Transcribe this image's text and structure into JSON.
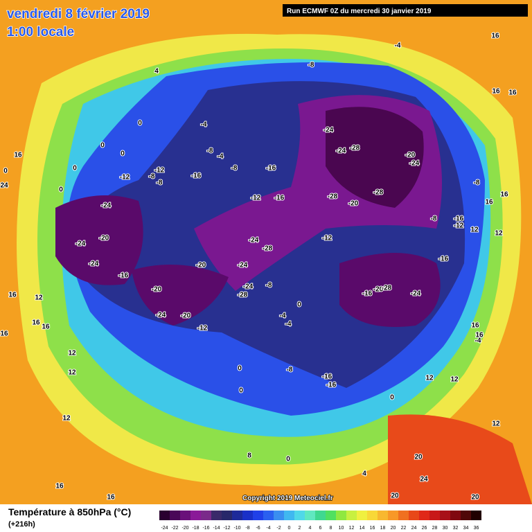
{
  "header": {
    "date": "vendredi 8 février 2019",
    "time": "1:00 locale",
    "run": "Run ECMWF 0Z du mercredi 30 janvier 2019"
  },
  "copyright": "Copyright 2019 Meteociel.fr",
  "legend": {
    "title": "Température à 850hPa (°C)",
    "subtitle": "(+216h)",
    "ticks": [
      -24,
      -22,
      -20,
      -18,
      -16,
      -14,
      -12,
      -10,
      -8,
      -6,
      -4,
      -2,
      0,
      2,
      4,
      6,
      8,
      10,
      12,
      14,
      16,
      18,
      20,
      22,
      24,
      26,
      28,
      30,
      32,
      34,
      36
    ],
    "colors": [
      "#2a0030",
      "#4a0858",
      "#6a107a",
      "#8a1a98",
      "#7a2a8a",
      "#3a2a6a",
      "#28286a",
      "#1e2a9a",
      "#1a30c8",
      "#2040e8",
      "#2a60f0",
      "#3a8ef0",
      "#40b8f0",
      "#50d8e8",
      "#60e8c0",
      "#40d890",
      "#50e060",
      "#90e840",
      "#c8f040",
      "#f0f040",
      "#f8d838",
      "#f8b830",
      "#f89828",
      "#f07020",
      "#e84818",
      "#e02818",
      "#c81818",
      "#a81018",
      "#800810",
      "#500808",
      "#200000"
    ]
  },
  "contour_labels": [
    -4,
    -8,
    4,
    16,
    16,
    16,
    0,
    -4,
    -24,
    -28,
    -24,
    -20,
    -24,
    0,
    0,
    -8,
    -4,
    -12,
    -8,
    -16,
    0,
    -12,
    -8,
    -8,
    -16,
    0,
    -8,
    16,
    16,
    -28,
    -28,
    -20,
    -12,
    -16,
    -24,
    -8,
    -16,
    -12,
    12,
    12,
    -20,
    -24,
    -24,
    -28,
    -12,
    -24,
    -20,
    -24,
    -16,
    -16,
    -8,
    -24,
    -28,
    -20,
    -16,
    -20,
    -28,
    -24,
    0,
    -4,
    -4,
    -24,
    -20,
    -12,
    16,
    -4,
    16,
    12,
    16,
    16,
    16,
    12,
    12,
    0,
    -8,
    -16,
    -16,
    0,
    0,
    12,
    12,
    12,
    8,
    0,
    20,
    4,
    24,
    16,
    16,
    20,
    20,
    12,
    16,
    0,
    24,
    16
  ]
}
